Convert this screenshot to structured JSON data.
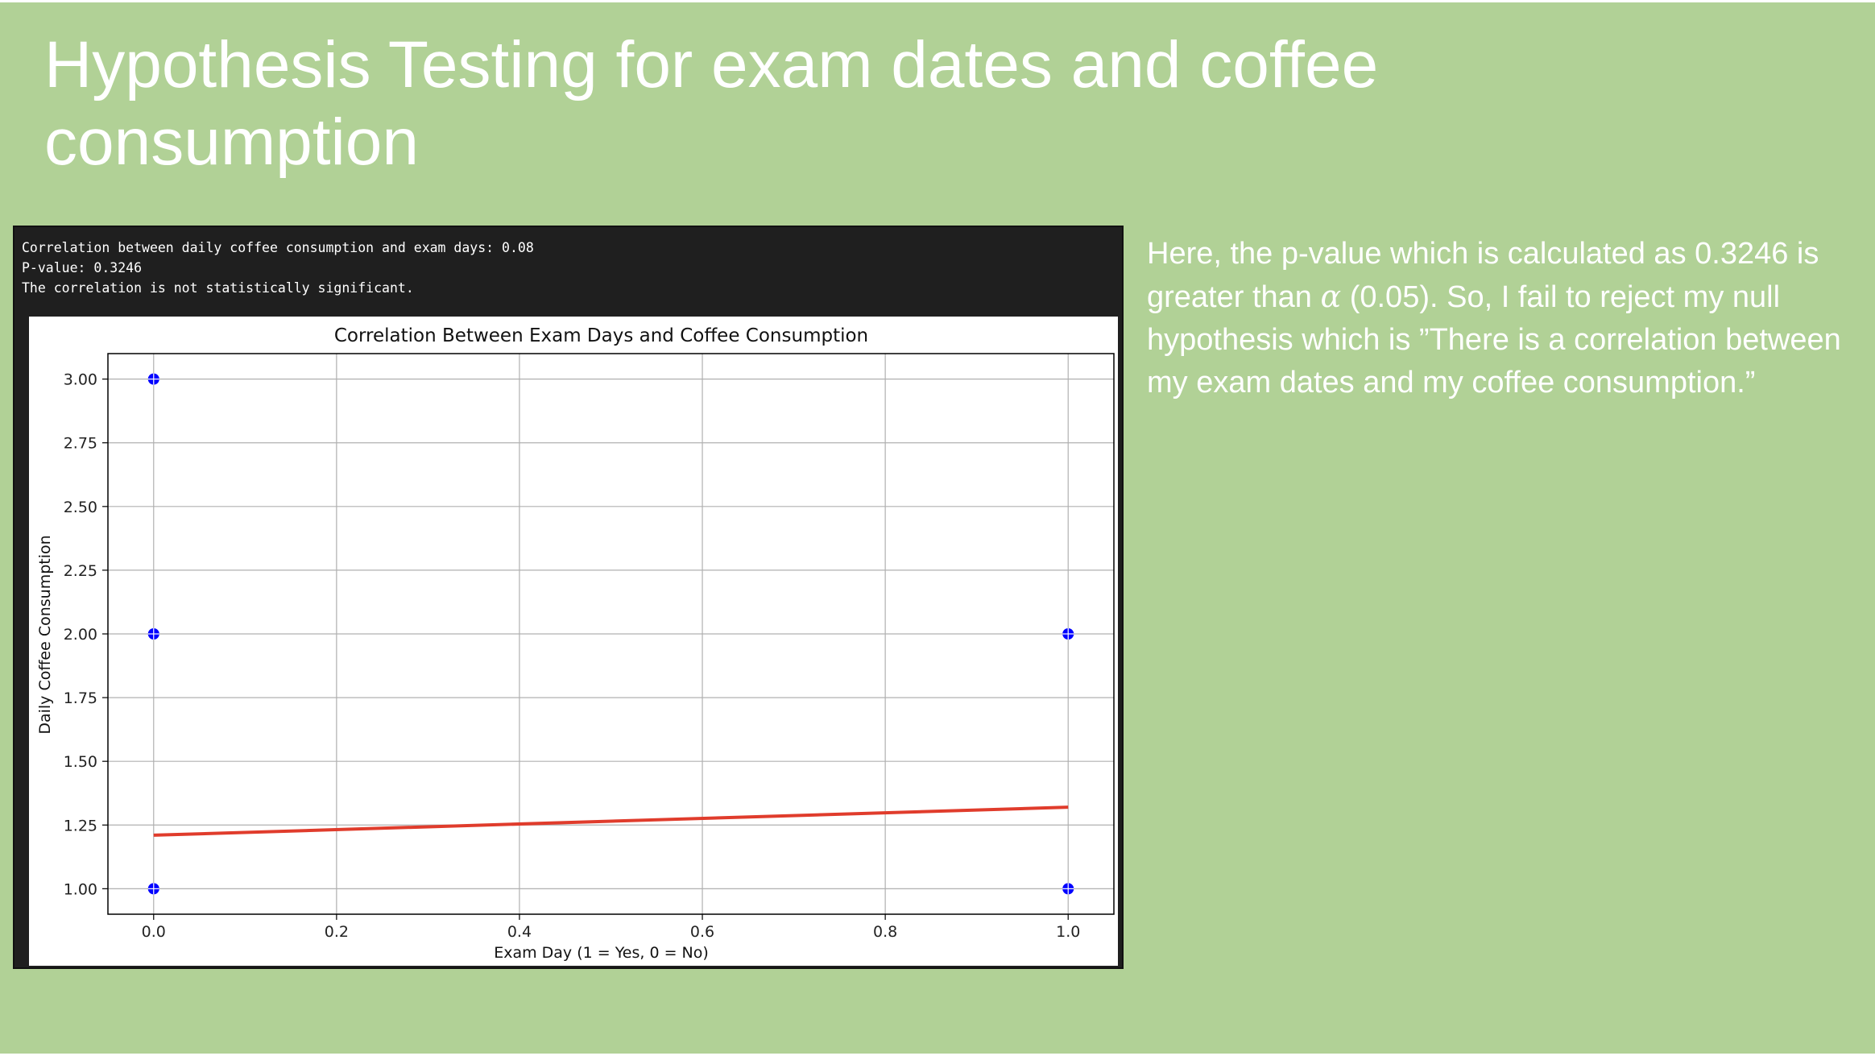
{
  "slide": {
    "title_line1": "Hypothesis Testing for exam dates and coffee",
    "title_line2": "consumption",
    "background": "#b1d196"
  },
  "console": {
    "line1": "Correlation between daily coffee consumption and exam days: 0.08",
    "line2": "P-value: 0.3246",
    "line3": "The correlation is not statistically significant."
  },
  "explanation": {
    "line1": "Here,  the p-value which is calculated as 0.3246 is",
    "line2_pre": "greater than ",
    "alpha_symbol": "α",
    "line2_post": " (0.05). So, I fail to reject my null",
    "line3": "hypothesis which is ”There is a correlation between",
    "line4": "my exam dates and my coffee consumption.”"
  },
  "chart_data": {
    "type": "scatter",
    "title": "Correlation Between Exam Days and Coffee Consumption",
    "xlabel": "Exam Day (1 = Yes, 0 = No)",
    "ylabel": "Daily Coffee Consumption",
    "xlim": [
      -0.05,
      1.05
    ],
    "ylim": [
      0.9,
      3.1
    ],
    "x_ticks": [
      "0.0",
      "0.2",
      "0.4",
      "0.6",
      "0.8",
      "1.0"
    ],
    "y_ticks": [
      "1.00",
      "1.25",
      "1.50",
      "1.75",
      "2.00",
      "2.25",
      "2.50",
      "2.75",
      "3.00"
    ],
    "grid": true,
    "points": [
      {
        "x": 0,
        "y": 3
      },
      {
        "x": 0,
        "y": 2
      },
      {
        "x": 0,
        "y": 1
      },
      {
        "x": 1,
        "y": 2
      },
      {
        "x": 1,
        "y": 1
      }
    ],
    "trend_line": {
      "x": [
        0,
        1
      ],
      "y": [
        1.21,
        1.32
      ]
    },
    "point_color": "#0000ff",
    "line_color": "#e03c2c"
  }
}
